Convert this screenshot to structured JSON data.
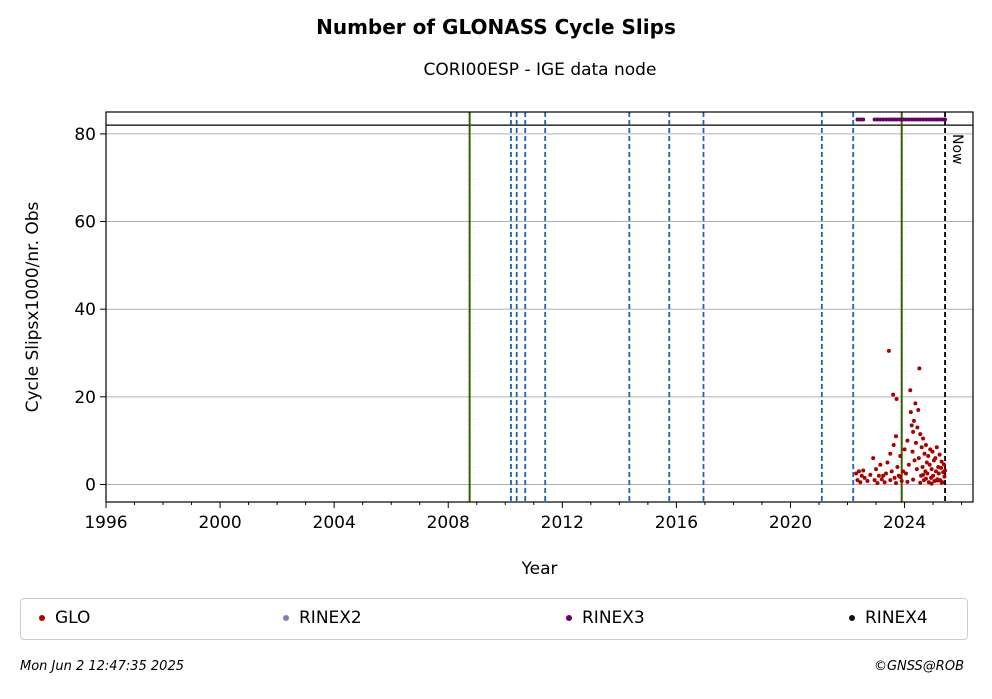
{
  "header": {
    "title": "Number of GLONASS Cycle Slips",
    "subtitle": "CORI00ESP - IGE data node"
  },
  "footer": {
    "timestamp": "Mon Jun  2 12:47:35 2025",
    "copyright": "©GNSS@ROB"
  },
  "colors": {
    "glo": "#aa0000",
    "rinex2": "#7f7fbf",
    "rinex3": "#660066",
    "rinex4": "#1a0a1a",
    "event_blue": "#1f5fbf",
    "event_green": "#008000"
  },
  "chart_data": {
    "type": "scatter",
    "title": "Number of GLONASS Cycle Slips",
    "subtitle": "CORI00ESP - IGE data node",
    "xlabel": "Year",
    "ylabel": "Cycle Slipsx1000/nr. Obs",
    "xlim": [
      1996,
      2026.4
    ],
    "ylim": [
      -4,
      85
    ],
    "x_ticks": [
      1996,
      2000,
      2004,
      2008,
      2012,
      2016,
      2020,
      2024
    ],
    "y_ticks": [
      0,
      20,
      40,
      60,
      80
    ],
    "grid": "horizontal",
    "reference_line_y": 82,
    "now_line": {
      "x": 2025.42,
      "label": "Now"
    },
    "event_lines_blue": [
      2010.2,
      2010.4,
      2010.7,
      2011.4,
      2014.35,
      2015.75,
      2016.95,
      2021.1,
      2022.2
    ],
    "event_lines_green": [
      2008.75,
      2023.9
    ],
    "legend_position": "bottom",
    "legend": [
      "GLO",
      "RINEX2",
      "RINEX3",
      "RINEX4"
    ],
    "series": [
      {
        "name": "GLO",
        "points": [
          [
            2022.3,
            2.5
          ],
          [
            2022.35,
            1.0
          ],
          [
            2022.4,
            3.0
          ],
          [
            2022.45,
            0.5
          ],
          [
            2022.5,
            2.0
          ],
          [
            2022.55,
            3.2
          ],
          [
            2022.6,
            1.5
          ],
          [
            2022.7,
            0.8
          ],
          [
            2022.8,
            2.2
          ],
          [
            2022.9,
            6.0
          ],
          [
            2022.95,
            1.0
          ],
          [
            2023.0,
            3.5
          ],
          [
            2023.05,
            0.3
          ],
          [
            2023.1,
            2.0
          ],
          [
            2023.15,
            4.5
          ],
          [
            2023.2,
            1.2
          ],
          [
            2023.3,
            0.5
          ],
          [
            2023.35,
            2.5
          ],
          [
            2023.4,
            5.0
          ],
          [
            2023.45,
            30.5
          ],
          [
            2023.5,
            7.0
          ],
          [
            2023.55,
            3.0
          ],
          [
            2023.6,
            20.5
          ],
          [
            2023.62,
            9.0
          ],
          [
            2023.65,
            1.5
          ],
          [
            2023.7,
            11.0
          ],
          [
            2023.72,
            19.5
          ],
          [
            2023.75,
            4.0
          ],
          [
            2023.8,
            2.0
          ],
          [
            2023.85,
            6.5
          ],
          [
            2023.9,
            0.8
          ],
          [
            2023.95,
            3.0
          ],
          [
            2024.0,
            8.0
          ],
          [
            2024.05,
            2.5
          ],
          [
            2024.1,
            10.0
          ],
          [
            2024.15,
            4.5
          ],
          [
            2024.2,
            21.5
          ],
          [
            2024.22,
            16.5
          ],
          [
            2024.25,
            13.5
          ],
          [
            2024.28,
            7.5
          ],
          [
            2024.3,
            12.0
          ],
          [
            2024.33,
            14.5
          ],
          [
            2024.35,
            5.5
          ],
          [
            2024.38,
            18.5
          ],
          [
            2024.4,
            9.5
          ],
          [
            2024.43,
            3.5
          ],
          [
            2024.45,
            13.0
          ],
          [
            2024.48,
            17.0
          ],
          [
            2024.5,
            6.0
          ],
          [
            2024.52,
            26.5
          ],
          [
            2024.55,
            11.5
          ],
          [
            2024.58,
            2.0
          ],
          [
            2024.6,
            8.5
          ],
          [
            2024.63,
            4.0
          ],
          [
            2024.65,
            10.5
          ],
          [
            2024.68,
            1.0
          ],
          [
            2024.7,
            7.0
          ],
          [
            2024.73,
            3.0
          ],
          [
            2024.75,
            9.0
          ],
          [
            2024.78,
            5.0
          ],
          [
            2024.8,
            2.5
          ],
          [
            2024.83,
            6.5
          ],
          [
            2024.85,
            0.5
          ],
          [
            2024.88,
            4.5
          ],
          [
            2024.9,
            8.0
          ],
          [
            2024.93,
            1.5
          ],
          [
            2024.95,
            3.5
          ],
          [
            2024.98,
            7.5
          ],
          [
            2025.0,
            2.0
          ],
          [
            2025.03,
            5.5
          ],
          [
            2025.05,
            0.8
          ],
          [
            2025.08,
            6.0
          ],
          [
            2025.1,
            3.0
          ],
          [
            2025.13,
            8.5
          ],
          [
            2025.15,
            1.2
          ],
          [
            2025.18,
            4.0
          ],
          [
            2025.2,
            2.5
          ],
          [
            2025.23,
            6.8
          ],
          [
            2025.25,
            1.0
          ],
          [
            2025.28,
            3.8
          ],
          [
            2025.3,
            5.2
          ],
          [
            2025.33,
            0.5
          ],
          [
            2025.35,
            2.8
          ],
          [
            2025.38,
            4.6
          ],
          [
            2025.4,
            1.8
          ],
          [
            2025.42,
            3.2
          ],
          [
            2023.5,
            1.0
          ],
          [
            2023.7,
            0.3
          ],
          [
            2024.1,
            0.6
          ],
          [
            2024.3,
            1.1
          ],
          [
            2024.55,
            0.4
          ],
          [
            2024.75,
            1.3
          ],
          [
            2024.95,
            0.2
          ],
          [
            2025.15,
            0.9
          ],
          [
            2025.3,
            0.4
          ],
          [
            2023.25,
            2.0
          ],
          [
            2023.85,
            1.7
          ],
          [
            2024.65,
            2.2
          ]
        ]
      },
      {
        "name": "RINEX3",
        "points": [
          [
            2022.35,
            83.3
          ],
          [
            2022.45,
            83.3
          ],
          [
            2022.55,
            83.3
          ],
          [
            2022.95,
            83.3
          ],
          [
            2023.05,
            83.3
          ],
          [
            2023.15,
            83.3
          ],
          [
            2023.25,
            83.3
          ],
          [
            2023.35,
            83.3
          ],
          [
            2023.45,
            83.3
          ],
          [
            2023.55,
            83.3
          ],
          [
            2023.65,
            83.3
          ],
          [
            2023.75,
            83.3
          ],
          [
            2023.85,
            83.3
          ],
          [
            2023.95,
            83.3
          ],
          [
            2024.05,
            83.3
          ],
          [
            2024.15,
            83.3
          ],
          [
            2024.25,
            83.3
          ],
          [
            2024.35,
            83.3
          ],
          [
            2024.45,
            83.3
          ],
          [
            2024.55,
            83.3
          ],
          [
            2024.65,
            83.3
          ],
          [
            2024.75,
            83.3
          ],
          [
            2024.85,
            83.3
          ],
          [
            2024.95,
            83.3
          ],
          [
            2025.05,
            83.3
          ],
          [
            2025.15,
            83.3
          ],
          [
            2025.25,
            83.3
          ],
          [
            2025.35,
            83.3
          ],
          [
            2025.42,
            83.3
          ]
        ]
      }
    ]
  }
}
